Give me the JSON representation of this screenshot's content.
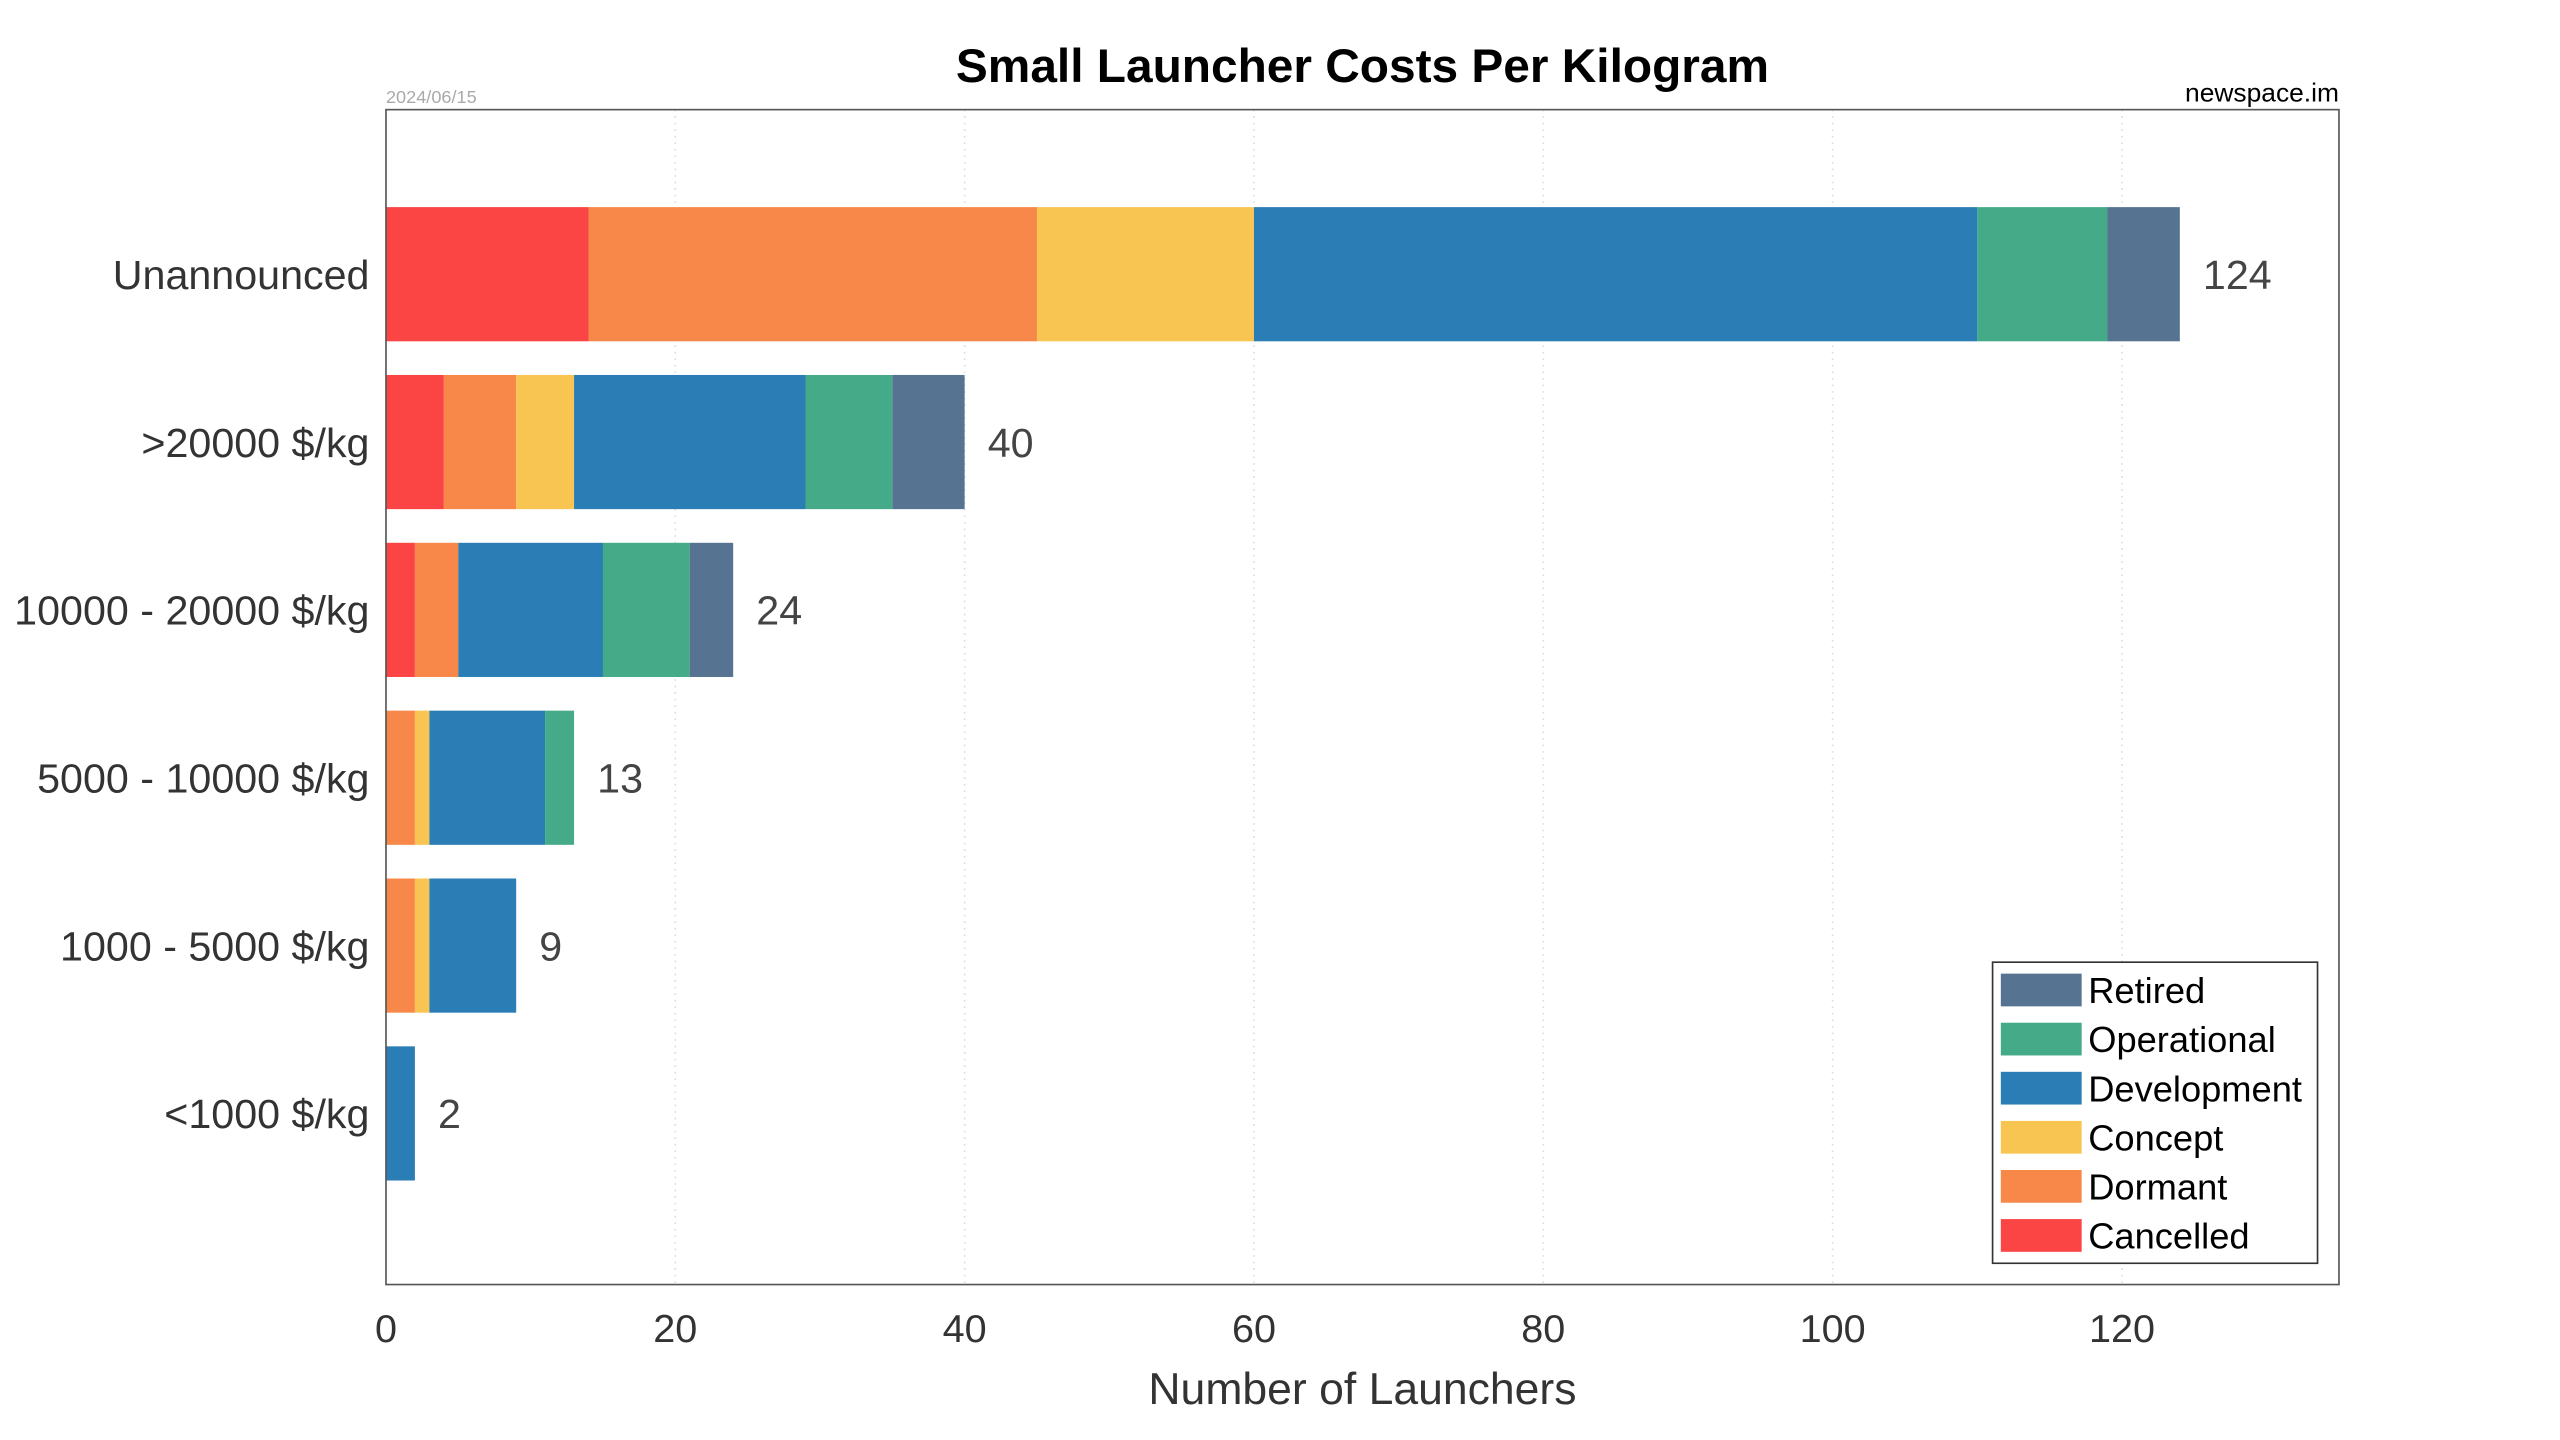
{
  "chart_data": {
    "type": "bar",
    "orientation": "horizontal",
    "stacked": true,
    "title": "Small Launcher Costs Per Kilogram",
    "date_label": "2024/06/15",
    "source_label": "newspace.im",
    "xlabel": "Number of Launchers",
    "ylabel": "",
    "xlim": [
      0,
      135
    ],
    "xticks": [
      0,
      20,
      40,
      60,
      80,
      100,
      120
    ],
    "grid": "vertical dotted",
    "legend_position": "bottom-right",
    "categories": [
      "Unannounced",
      ">20000 $/kg",
      "10000 - 20000 $/kg",
      "5000 - 10000 $/kg",
      "1000 - 5000 $/kg",
      "<1000 $/kg"
    ],
    "totals": [
      124,
      40,
      24,
      13,
      9,
      2
    ],
    "series": [
      {
        "name": "Cancelled",
        "color": "#FB4444",
        "values": [
          14,
          4,
          2,
          0,
          0,
          0
        ]
      },
      {
        "name": "Dormant",
        "color": "#F7884A",
        "values": [
          31,
          5,
          3,
          2,
          2,
          0
        ]
      },
      {
        "name": "Concept",
        "color": "#F8C452",
        "values": [
          15,
          4,
          0,
          1,
          1,
          0
        ]
      },
      {
        "name": "Development",
        "color": "#2A7EB5",
        "values": [
          50,
          16,
          10,
          8,
          6,
          2
        ]
      },
      {
        "name": "Operational",
        "color": "#44AA88",
        "values": [
          9,
          6,
          6,
          2,
          0,
          0
        ]
      },
      {
        "name": "Retired",
        "color": "#567491",
        "values": [
          5,
          5,
          3,
          0,
          0,
          0
        ]
      }
    ]
  }
}
